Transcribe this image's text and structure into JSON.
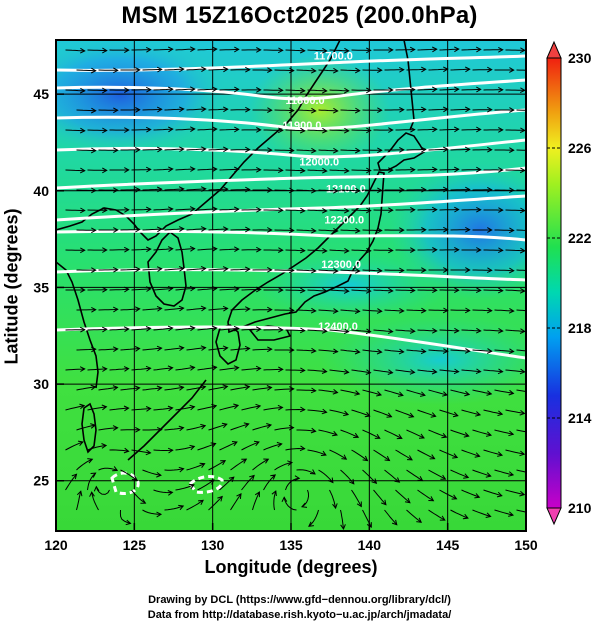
{
  "title": "MSM 15Z16Oct2025 (200.0hPa)",
  "map": {
    "x_label": "Longitude (degrees)",
    "y_label": "Latitude  (degrees)",
    "lon_range": [
      120,
      150
    ],
    "lat_range": [
      22.4,
      47.8
    ],
    "lon_ticks": [
      "120",
      "125",
      "130",
      "135",
      "140",
      "145",
      "150"
    ],
    "lat_ticks": [
      "25",
      "30",
      "35",
      "40",
      "45"
    ],
    "lon_tick_values": [
      120,
      125,
      130,
      135,
      140,
      145,
      150
    ],
    "lat_tick_values": [
      25,
      30,
      35,
      40,
      45
    ],
    "contour_labels": [
      {
        "text": "11700.0",
        "lon": 137.7,
        "lat": 46.8
      },
      {
        "text": "11800.0",
        "lon": 135.9,
        "lat": 44.5
      },
      {
        "text": "11900.0",
        "lon": 135.7,
        "lat": 43.2
      },
      {
        "text": "12000.0",
        "lon": 136.8,
        "lat": 41.3
      },
      {
        "text": "12100.0",
        "lon": 138.5,
        "lat": 39.9
      },
      {
        "text": "12200.0",
        "lon": 138.4,
        "lat": 38.3
      },
      {
        "text": "12300.0",
        "lon": 138.2,
        "lat": 36.0
      },
      {
        "text": "12400.0",
        "lon": 138.0,
        "lat": 32.8
      }
    ],
    "vortex_center": {
      "lon": 135.5,
      "lat": 24.6
    }
  },
  "colorbar": {
    "labels": [
      "230",
      "226",
      "222",
      "218",
      "214",
      "210"
    ],
    "min": 210,
    "max": 230,
    "colors": [
      "#d000d0",
      "#2020e0",
      "#00c8f0",
      "#20e060",
      "#c0f020",
      "#f08000",
      "#f02020"
    ]
  },
  "credits": {
    "line1": "Drawing by DCL (https://www.gfd−dennou.org/library/dcl/)",
    "line2": "Data from http://database.rish.kyoto−u.ac.jp/arch/jmadata/"
  }
}
